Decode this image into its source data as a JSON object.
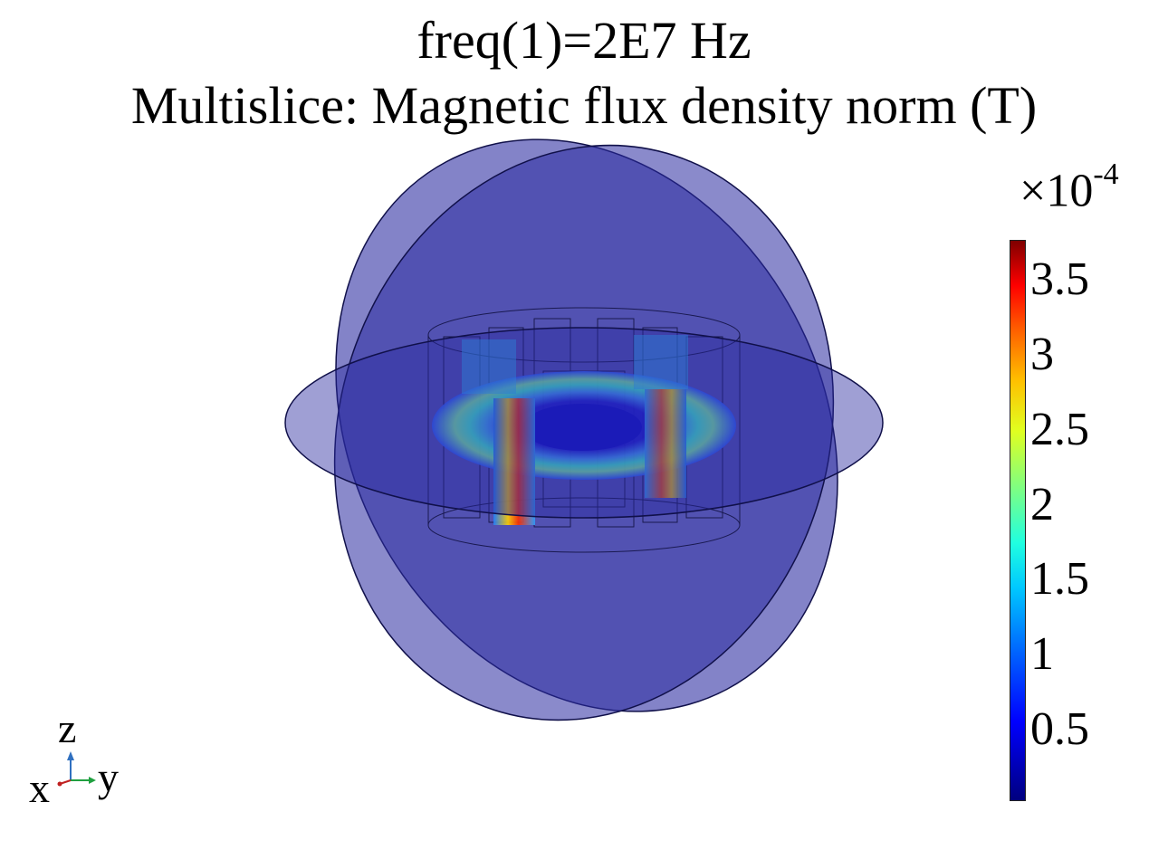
{
  "title": "freq(1)=2E7 Hz",
  "subtitle": "Multislice: Magnetic flux density norm (T)",
  "colorbar": {
    "multiplier_prefix": "×10",
    "multiplier_exponent": "-4",
    "ticks": [
      "3.5",
      "3",
      "2.5",
      "2",
      "1.5",
      "1",
      "0.5"
    ],
    "tick_values": [
      3.5,
      3,
      2.5,
      2,
      1.5,
      1,
      0.5
    ],
    "range": [
      0,
      3.7
    ],
    "colormap": "rainbow"
  },
  "axis_triad": {
    "z": "z",
    "x": "x",
    "y": "y"
  },
  "colors": {
    "slice_fill": "#2a2aa0",
    "slice_stroke": "#10104a",
    "hot": "#ff3000",
    "warm": "#ffe020",
    "cool": "#20e0ff"
  }
}
